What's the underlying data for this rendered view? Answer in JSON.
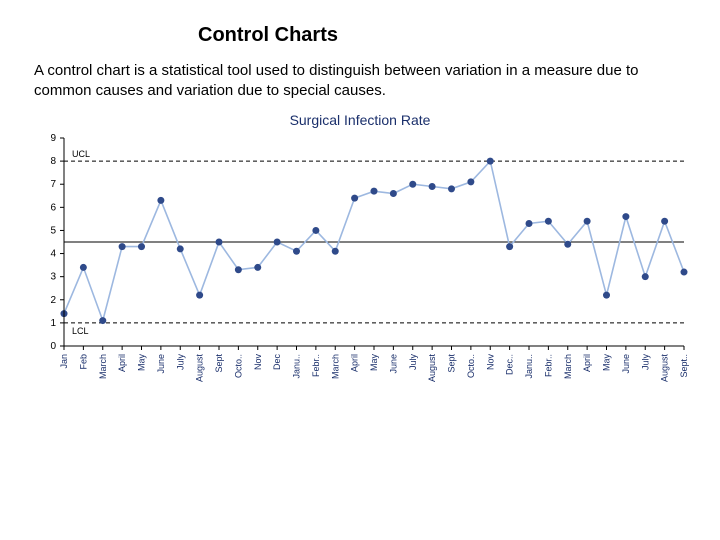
{
  "page": {
    "title": "Control Charts",
    "description": "A control chart is a statistical tool used to distinguish between variation in a measure due to common causes and variation due to special causes."
  },
  "chart": {
    "type": "line",
    "title": "Surgical Infection Rate",
    "title_color": "#1a2f6b",
    "title_fontsize": 14,
    "background_color": "#ffffff",
    "axis_color": "#000000",
    "line_color": "#9db8e0",
    "marker_color": "#2f4a8a",
    "marker_radius": 3.5,
    "line_width": 1.6,
    "ucl": {
      "value": 8.0,
      "label": "UCL",
      "color": "#000000",
      "dash": "4 3"
    },
    "lcl": {
      "value": 1.0,
      "label": "LCL",
      "color": "#000000",
      "dash": "4 3"
    },
    "centerline": {
      "value": 4.5,
      "color": "#000000"
    },
    "ylim": [
      0,
      9
    ],
    "ytick_step": 1,
    "ylabel_fontsize": 10,
    "xlabel_fontsize": 9,
    "xlabel_color": "#1a2f6b",
    "x_labels": [
      "Jan",
      "Feb",
      "March",
      "April",
      "May",
      "June",
      "July",
      "August",
      "Sept",
      "Octo..",
      "Nov",
      "Dec",
      "Janu..",
      "Febr..",
      "March",
      "April",
      "May",
      "June",
      "July",
      "August",
      "Sept",
      "Octo..",
      "Nov",
      "Dec..",
      "Janu..",
      "Febr..",
      "March",
      "April",
      "May",
      "June",
      "July",
      "August",
      "Sept.."
    ],
    "values": [
      1.4,
      3.4,
      1.1,
      4.3,
      4.3,
      6.3,
      4.2,
      2.2,
      4.5,
      3.3,
      3.4,
      4.5,
      4.1,
      5.0,
      4.1,
      6.4,
      6.7,
      6.6,
      7.0,
      6.9,
      6.8,
      7.1,
      8.0,
      4.3,
      5.3,
      5.4,
      4.4,
      5.4,
      2.2,
      5.6,
      3.0,
      5.4,
      3.2
    ]
  }
}
